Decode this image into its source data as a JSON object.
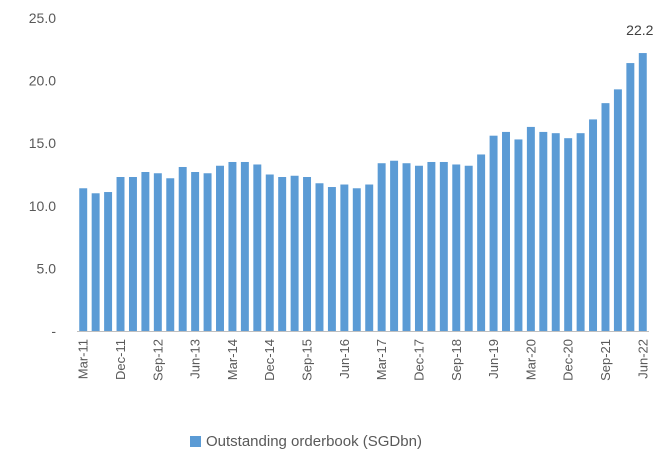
{
  "colors": {
    "bar": "#5b9bd5",
    "axis": "#bfbfbf",
    "text": "#595959"
  },
  "chart_data": {
    "type": "bar",
    "title": "",
    "xlabel": "",
    "ylabel": "",
    "ylim": [
      0,
      25
    ],
    "y_ticks": [
      0,
      5,
      10,
      15,
      20,
      25
    ],
    "y_tick_labels": [
      "-",
      "5.0",
      "10.0",
      "15.0",
      "20.0",
      "25.0"
    ],
    "grid": false,
    "legend_position": "bottom",
    "categories": [
      "Mar-11",
      "Jun-11",
      "Sep-11",
      "Dec-11",
      "Mar-12",
      "Jun-12",
      "Sep-12",
      "Dec-12",
      "Mar-13",
      "Jun-13",
      "Sep-13",
      "Dec-13",
      "Mar-14",
      "Jun-14",
      "Sep-14",
      "Dec-14",
      "Mar-15",
      "Jun-15",
      "Sep-15",
      "Dec-15",
      "Mar-16",
      "Jun-16",
      "Sep-16",
      "Dec-16",
      "Mar-17",
      "Jun-17",
      "Sep-17",
      "Dec-17",
      "Mar-18",
      "Jun-18",
      "Sep-18",
      "Dec-18",
      "Mar-19",
      "Jun-19",
      "Sep-19",
      "Dec-19",
      "Mar-20",
      "Jun-20",
      "Sep-20",
      "Dec-20",
      "Mar-21",
      "Jun-21",
      "Sep-21",
      "Dec-21",
      "Mar-22",
      "Jun-22"
    ],
    "shown_tick_labels": [
      "Mar-11",
      "Dec-11",
      "Sep-12",
      "Jun-13",
      "Mar-14",
      "Dec-14",
      "Sep-15",
      "Jun-16",
      "Mar-17",
      "Dec-17",
      "Sep-18",
      "Jun-19",
      "Mar-20",
      "Dec-20",
      "Sep-21",
      "Jun-22"
    ],
    "series": [
      {
        "name": "Outstanding orderbook (SGDbn)",
        "values": [
          11.4,
          11.0,
          11.1,
          12.3,
          12.3,
          12.7,
          12.6,
          12.2,
          13.1,
          12.7,
          12.6,
          13.2,
          13.5,
          13.5,
          13.3,
          12.5,
          12.3,
          12.4,
          12.3,
          11.8,
          11.5,
          11.7,
          11.4,
          11.7,
          13.4,
          13.6,
          13.4,
          13.2,
          13.5,
          13.5,
          13.3,
          13.2,
          14.1,
          15.6,
          15.9,
          15.3,
          16.3,
          15.9,
          15.8,
          15.4,
          15.8,
          16.9,
          18.2,
          19.3,
          21.4,
          22.2
        ]
      }
    ],
    "data_labels": [
      {
        "index": 45,
        "text": "22.2"
      }
    ]
  }
}
